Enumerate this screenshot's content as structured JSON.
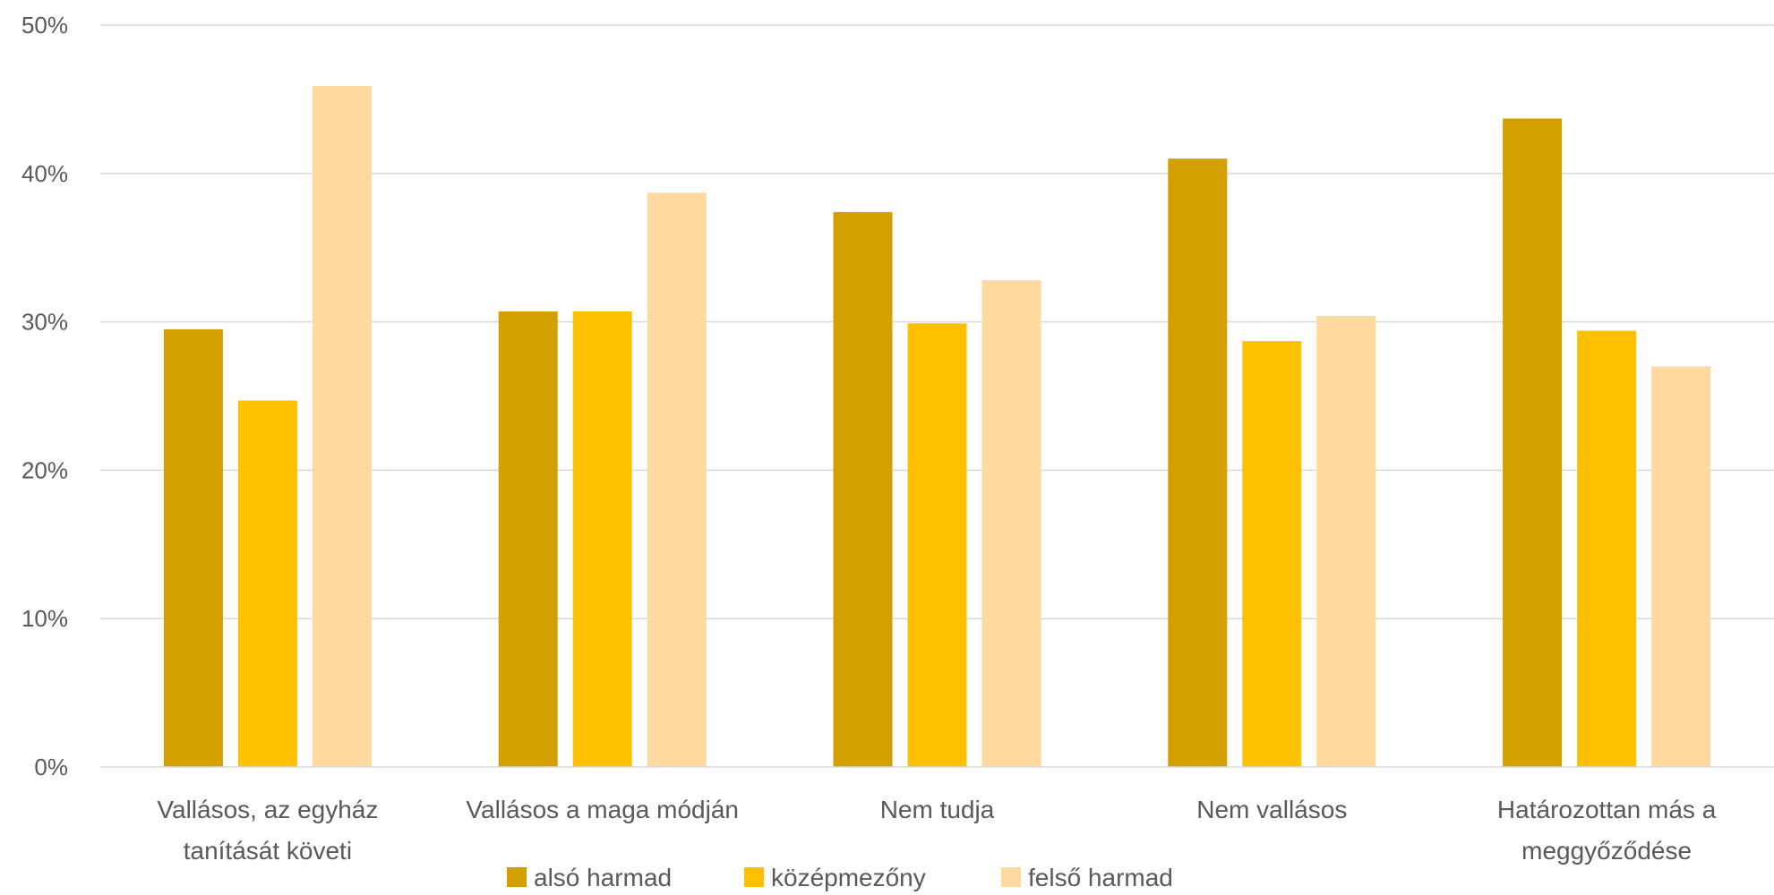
{
  "chart_data": {
    "type": "bar",
    "categories": [
      "Vallásos, az egyház tanítását követi",
      "Vallásos a maga módján",
      "Nem tudja",
      "Nem vallásos",
      "Határozottan más a meggyőződése"
    ],
    "category_lines": [
      [
        "Vallásos, az egyház",
        "tanítását követi"
      ],
      [
        "Vallásos a maga módján"
      ],
      [
        "Nem tudja"
      ],
      [
        "Nem vallásos"
      ],
      [
        "Határozottan más a",
        "meggyőződése"
      ]
    ],
    "series": [
      {
        "name": "alsó harmad",
        "color": "#D4A000",
        "values": [
          29.5,
          30.7,
          37.4,
          41.0,
          43.7
        ]
      },
      {
        "name": "középmezőny",
        "color": "#FFC000",
        "values": [
          24.7,
          30.7,
          29.9,
          28.7,
          29.4
        ]
      },
      {
        "name": "felső harmad",
        "color": "#FFD9A0",
        "values": [
          45.9,
          38.7,
          32.8,
          30.4,
          27.0
        ]
      }
    ],
    "ylim": [
      0,
      50
    ],
    "yticks": [
      "0%",
      "10%",
      "20%",
      "30%",
      "40%",
      "50%"
    ],
    "ytick_values": [
      0,
      10,
      20,
      30,
      40,
      50
    ],
    "gridlines": true,
    "gridline_color": "#D9D9D9",
    "legend_position": "bottom"
  }
}
